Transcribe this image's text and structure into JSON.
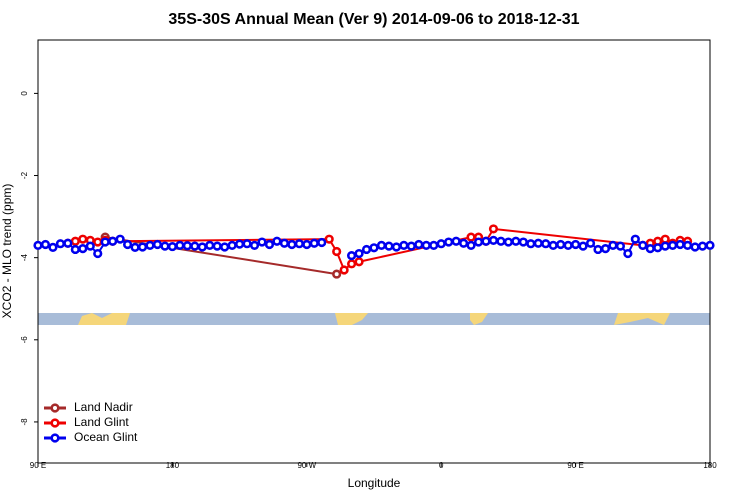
{
  "chart_data": {
    "type": "line",
    "title": "35S-30S Annual Mean (Ver 9)   2014-09-06 to 2018-12-31",
    "x_label": "Longitude",
    "y_label": "XCO2 - MLO trend (ppm)",
    "xlim": [
      90,
      540
    ],
    "xticks": [
      {
        "value": 90,
        "label": "90 E"
      },
      {
        "value": 180,
        "label": "180"
      },
      {
        "value": 270,
        "label": "90 W"
      },
      {
        "value": 360,
        "label": "0"
      },
      {
        "value": 450,
        "label": "90 E"
      },
      {
        "value": 540,
        "label": "180"
      }
    ],
    "ylim": [
      -9.0,
      1.3
    ],
    "yticks": [
      0,
      -2,
      -4,
      -6,
      -8
    ],
    "legend": "bottom-left",
    "series": [
      {
        "name": "Land Nadir",
        "color": "#a52a2a",
        "x": [
          135,
          290
        ],
        "values": [
          -3.5,
          -4.4
        ]
      },
      {
        "name": "Land Glint",
        "color": "#ee0000",
        "x": [
          110,
          115,
          120,
          125,
          130,
          135,
          140,
          285,
          290,
          295,
          300,
          305,
          380,
          385,
          390,
          395,
          495,
          500,
          505,
          510,
          515,
          520,
          525
        ],
        "values": [
          -3.65,
          -3.6,
          -3.55,
          -3.58,
          -3.62,
          -3.58,
          -3.6,
          -3.55,
          -3.85,
          -4.3,
          -4.15,
          -4.1,
          -3.5,
          -3.5,
          -3.6,
          -3.3,
          -3.7,
          -3.65,
          -3.6,
          -3.55,
          -3.65,
          -3.58,
          -3.6
        ]
      },
      {
        "name": "Ocean Glint",
        "color": "#0000ee",
        "x": [
          90,
          95,
          100,
          105,
          110,
          115,
          120,
          125,
          130,
          135,
          140,
          145,
          150,
          155,
          160,
          165,
          170,
          175,
          180,
          185,
          190,
          195,
          200,
          205,
          210,
          215,
          220,
          225,
          230,
          235,
          240,
          245,
          250,
          255,
          260,
          265,
          270,
          275,
          280,
          285,
          290,
          295,
          300,
          305,
          310,
          315,
          320,
          325,
          330,
          335,
          340,
          345,
          350,
          355,
          360,
          365,
          370,
          375,
          380,
          385,
          390,
          395,
          400,
          405,
          410,
          415,
          420,
          425,
          430,
          435,
          440,
          445,
          450,
          455,
          460,
          465,
          470,
          475,
          480,
          485,
          490,
          495,
          500,
          505,
          510,
          515,
          520,
          525,
          530,
          535,
          540
        ],
        "values": [
          -3.7,
          -3.68,
          -3.75,
          -3.66,
          -3.65,
          -3.8,
          -3.78,
          -3.72,
          -3.9,
          -3.62,
          -3.6,
          -3.55,
          -3.68,
          -3.75,
          -3.74,
          -3.7,
          -3.68,
          -3.72,
          -3.73,
          -3.7,
          -3.71,
          -3.72,
          -3.74,
          -3.7,
          -3.72,
          -3.74,
          -3.7,
          -3.67,
          -3.66,
          -3.7,
          -3.62,
          -3.68,
          -3.6,
          -3.65,
          -3.68,
          -3.66,
          -3.68,
          -3.65,
          -3.63,
          null,
          null,
          null,
          -3.95,
          -3.9,
          -3.8,
          -3.76,
          -3.7,
          -3.72,
          -3.74,
          -3.7,
          -3.72,
          -3.68,
          -3.7,
          -3.7,
          -3.66,
          -3.62,
          -3.6,
          -3.65,
          -3.7,
          -3.62,
          -3.6,
          -3.58,
          -3.6,
          -3.62,
          -3.6,
          -3.62,
          -3.66,
          -3.65,
          -3.66,
          -3.7,
          -3.68,
          -3.7,
          -3.68,
          -3.72,
          -3.65,
          -3.8,
          -3.78,
          -3.7,
          -3.72,
          -3.9,
          -3.55,
          -3.7,
          -3.78,
          -3.76,
          -3.72,
          -3.7,
          -3.68,
          -3.7,
          -3.74,
          -3.72,
          -3.7
        ]
      }
    ]
  }
}
